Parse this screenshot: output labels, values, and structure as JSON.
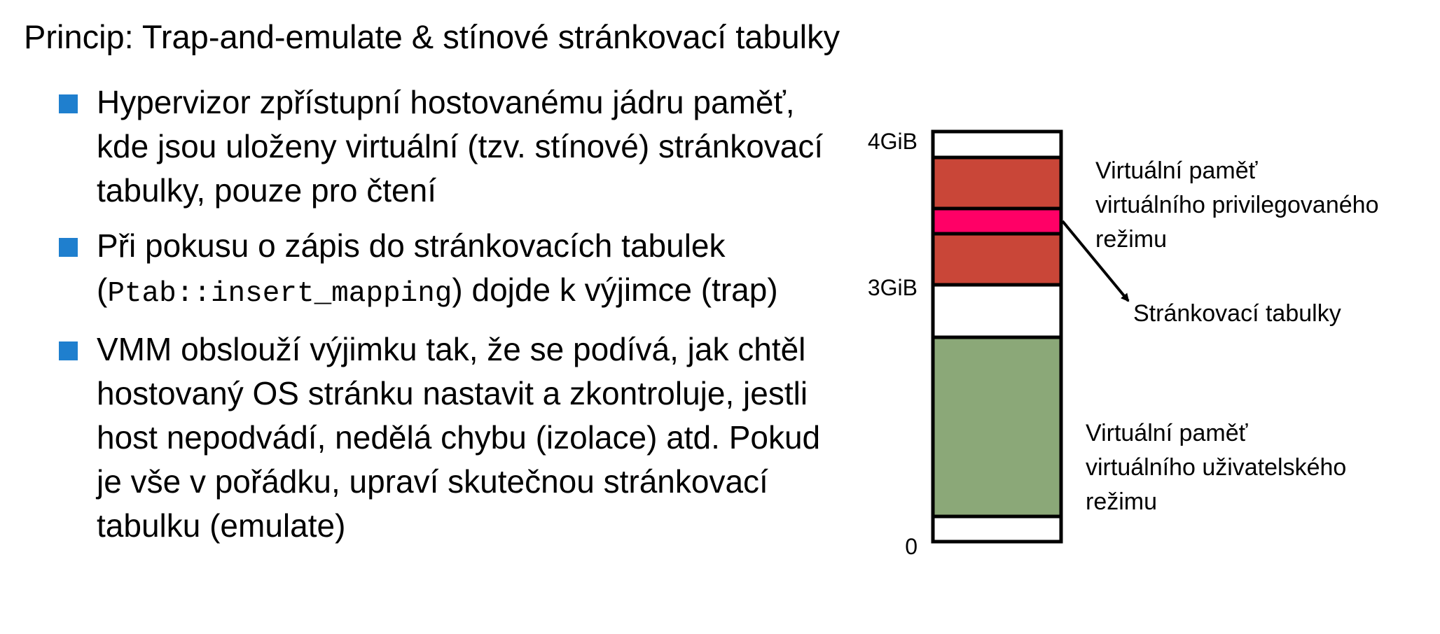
{
  "slide": {
    "title": "Princip: Trap-and-emulate & stínové stránkovací tabulky",
    "bullets": [
      {
        "before": "Hypervizor zpřístupní hostovanému jádru paměť, kde jsou uloženy virtuální (tzv. stínové) stránkovací tabulky, pouze pro čtení",
        "code": "",
        "after": ""
      },
      {
        "before": "Při pokusu o zápis do stránkovacích tabulek (",
        "code": "Ptab::insert_mapping",
        "after": ") dojde k výjimce (trap)"
      },
      {
        "before": "VMM obslouží výjimku tak, že se podívá, jak chtěl hostovaný OS stránku nastavit a zkontroluje, jestli host nepodvádí, nedělá chybu (izolace) atd. Pokud je vše v pořádku, upraví skutečnou stránkovací tabulku (emulate)",
        "code": "",
        "after": ""
      }
    ],
    "bullet_color": "#1f7fce"
  },
  "diagram": {
    "address_labels": {
      "top": "4GiB",
      "middle": "3GiB",
      "bottom": "0"
    },
    "regions": {
      "kernel_color": "#c94638",
      "page_tables_color": "#ff0066",
      "user_color": "#8ba878",
      "free_color": "#ffffff"
    },
    "labels": {
      "kernel": [
        "Virtuální paměť",
        "virtuálního privilegovaného",
        "režimu"
      ],
      "page_tables": "Stránkovací tabulky",
      "user": [
        "Virtuální paměť",
        "virtuálního uživatelského",
        "režimu"
      ]
    }
  }
}
